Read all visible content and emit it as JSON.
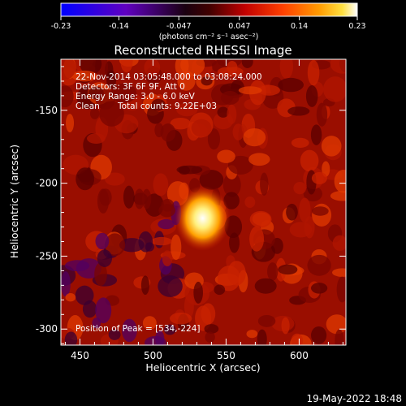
{
  "colorbar": {
    "ticks": [
      "-0.23",
      "-0.14",
      "-0.047",
      "0.047",
      "0.14",
      "0.23"
    ],
    "tick_values": [
      -0.23,
      -0.14,
      -0.047,
      0.047,
      0.14,
      0.23
    ],
    "range": [
      -0.23,
      0.23
    ],
    "units": "(photons cm⁻² s⁻¹ asec⁻²)",
    "colors": [
      "#0000ff",
      "#6000c0",
      "#a000a0",
      "#c00000",
      "#ff4000",
      "#ff9000",
      "#ffe040",
      "#ffffff"
    ]
  },
  "annotations": {
    "line1": "22-Nov-2014 03:05:48.000 to 03:08:24.000",
    "line2": "Detectors: 3F 6F 9F, Att 0",
    "line3": "Energy Range: 3.0 - 6.0 keV",
    "line4_left": "Clean",
    "line4_right": "Total counts: 9.22E+03",
    "peak": "Position of Peak = [534,-224]"
  },
  "timestamp": "19-May-2022 18:48",
  "chart_data": {
    "type": "heatmap",
    "title": "Reconstructed RHESSI Image",
    "xlabel": "Heliocentric X (arcsec)",
    "ylabel": "Heliocentric Y (arcsec)",
    "xlim": [
      437,
      632
    ],
    "ylim": [
      -311,
      -115
    ],
    "xticks": [
      450,
      500,
      550,
      600
    ],
    "yticks": [
      -150,
      -200,
      -250,
      -300
    ],
    "peak": {
      "x": 534,
      "y": -224
    },
    "colormap": "diverging blue-purple-black-red-yellow-white"
  }
}
